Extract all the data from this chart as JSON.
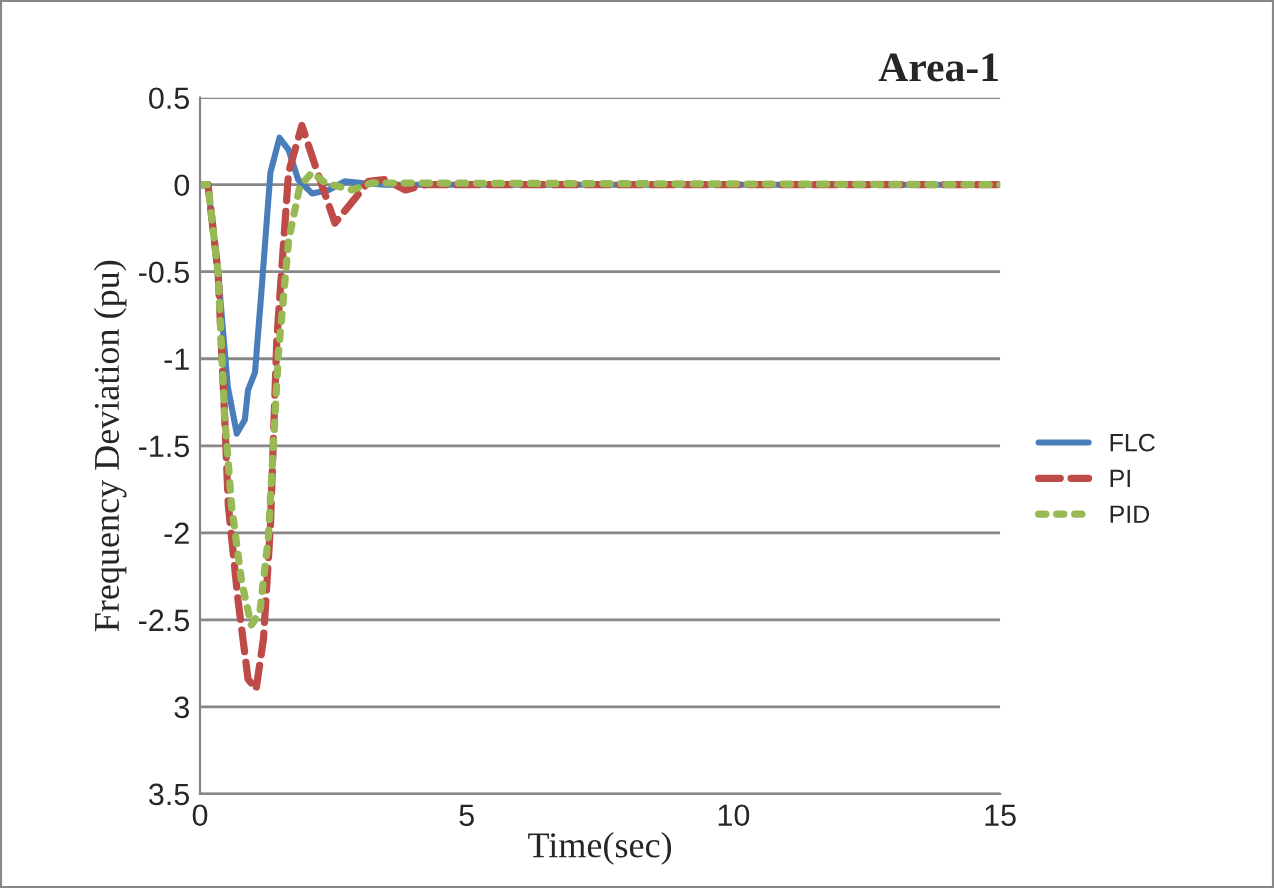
{
  "chart_data": {
    "type": "line",
    "title": "Area-1",
    "xlabel": "Time(sec)",
    "ylabel": "Frequency Deviation (pu)",
    "xlim": [
      0,
      15
    ],
    "xticks": [
      0,
      5,
      10,
      15
    ],
    "ylim": [
      -3.5,
      0.5
    ],
    "yticks": [
      0.5,
      0,
      -0.5,
      -1,
      -1.5,
      -2,
      -2.5,
      {
        "value": -3,
        "label": "3"
      },
      {
        "value": -3.5,
        "label": "3.5"
      }
    ],
    "grid": "y",
    "legend": "right",
    "series": [
      {
        "name": "FLC",
        "color": "#4a7ebb",
        "line_style": "solid",
        "x": [
          0,
          0.15,
          0.34,
          0.52,
          0.69,
          0.84,
          0.9,
          1.03,
          1.15,
          1.32,
          1.49,
          1.66,
          1.84,
          2.1,
          2.41,
          2.72,
          3.03,
          3.47,
          15
        ],
        "values": [
          0,
          -0.01,
          -0.51,
          -1.16,
          -1.43,
          -1.35,
          -1.18,
          -1.08,
          -0.62,
          0.07,
          0.27,
          0.2,
          0.03,
          -0.05,
          -0.03,
          0.02,
          0.01,
          0,
          0
        ]
      },
      {
        "name": "PI",
        "color": "#be4b48",
        "line_style": "dashed",
        "x": [
          0,
          0.15,
          0.34,
          0.46,
          0.53,
          0.71,
          0.9,
          1.05,
          1.19,
          1.32,
          1.44,
          1.66,
          1.91,
          2.16,
          2.53,
          2.85,
          3.16,
          3.47,
          3.85,
          4.22,
          15
        ],
        "values": [
          0,
          0,
          -0.51,
          -1.32,
          -1.84,
          -2.38,
          -2.84,
          -2.9,
          -2.61,
          -1.96,
          -0.89,
          0.07,
          0.34,
          0.11,
          -0.22,
          -0.1,
          0.02,
          0.03,
          -0.03,
          0,
          0
        ]
      },
      {
        "name": "PID",
        "color": "#98b954",
        "line_style": "dotted",
        "x": [
          0,
          0.15,
          0.34,
          0.46,
          0.59,
          0.78,
          0.96,
          1.12,
          1.28,
          1.47,
          1.66,
          1.87,
          2.1,
          2.35,
          2.85,
          3.22,
          15
        ],
        "values": [
          0,
          0,
          -0.51,
          -1.32,
          -1.84,
          -2.28,
          -2.53,
          -2.46,
          -2.03,
          -0.97,
          -0.32,
          -0.01,
          0.07,
          0.01,
          -0.03,
          0.01,
          0
        ]
      }
    ]
  }
}
